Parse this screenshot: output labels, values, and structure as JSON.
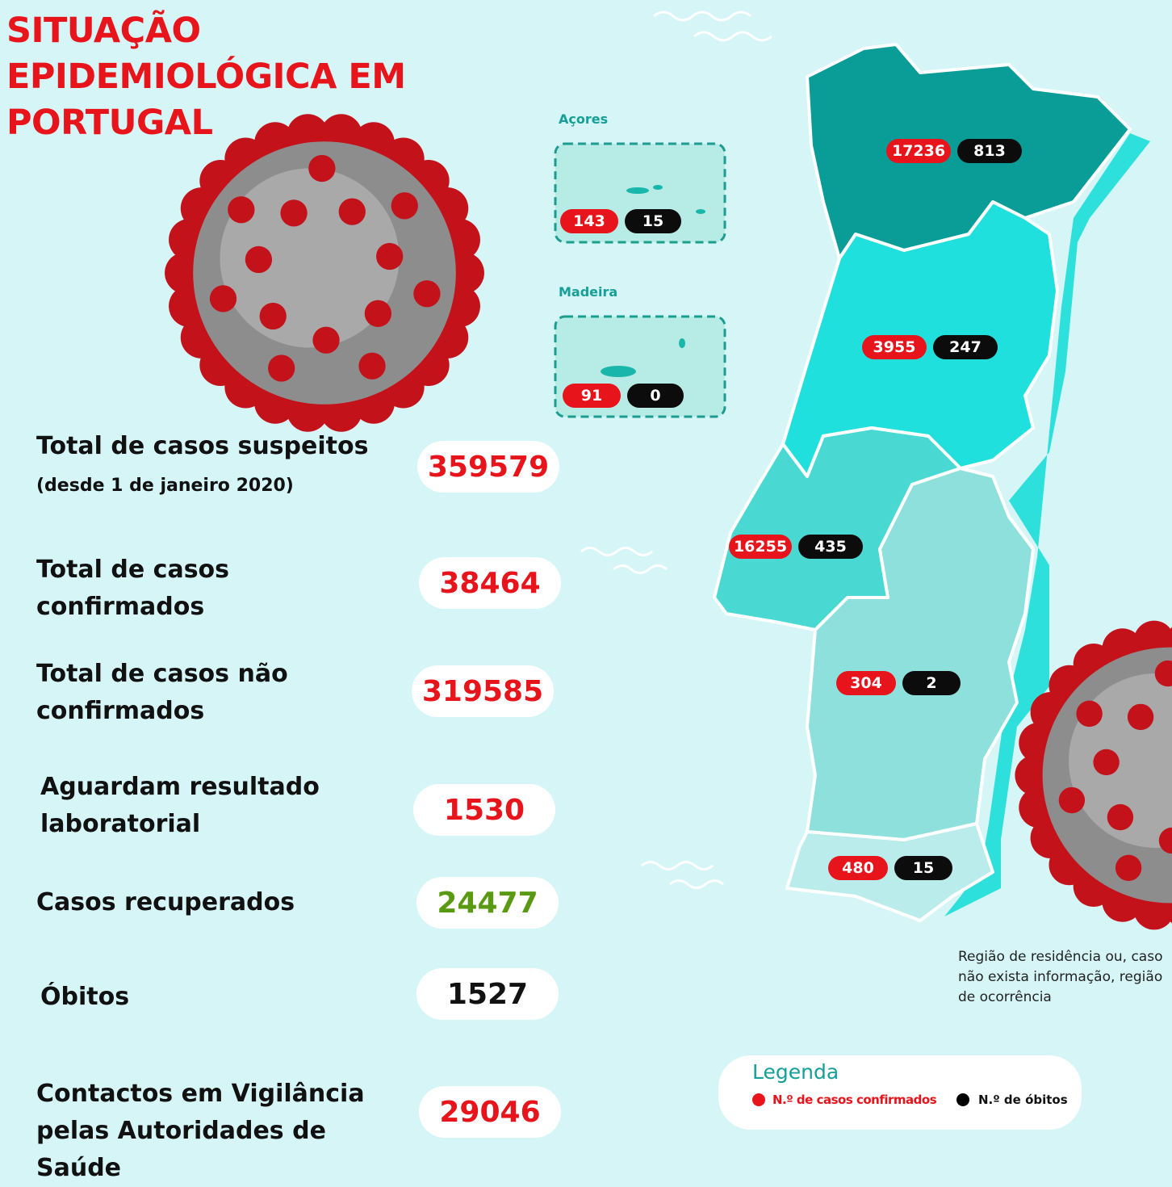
{
  "title_lines": [
    "SITUAÇÃO",
    "EPIDEMIOLÓGICA EM",
    "PORTUGAL"
  ],
  "stats": [
    {
      "label": "Total de casos suspeitos",
      "note": "(desde 1 de janeiro 2020)",
      "value": 359579,
      "color": "#e8141b"
    },
    {
      "label": "Total de casos confirmados",
      "value": 38464,
      "color": "#e8141b"
    },
    {
      "label": "Total de casos não confirmados",
      "value": 319585,
      "color": "#e8141b"
    },
    {
      "label": "Aguardam resultado laboratorial",
      "value": 1530,
      "color": "#e8141b"
    },
    {
      "label": "Casos recuperados",
      "value": 24477,
      "color": "#5a9a12"
    },
    {
      "label": "Óbitos",
      "value": 1527,
      "color": "#111111"
    },
    {
      "label": "Contactos em Vigilância pelas Autoridades de Saúde",
      "value": 29046,
      "color": "#e8141b"
    }
  ],
  "islands": [
    {
      "name": "Açores",
      "cases": 143,
      "deaths": 15
    },
    {
      "name": "Madeira",
      "cases": 91,
      "deaths": 0
    }
  ],
  "regions": [
    {
      "cases": 17236,
      "deaths": 813
    },
    {
      "cases": 3955,
      "deaths": 247
    },
    {
      "cases": 16255,
      "deaths": 435
    },
    {
      "cases": 304,
      "deaths": 2
    },
    {
      "cases": 480,
      "deaths": 15
    }
  ],
  "footnote": "Região de residência ou, caso não exista informação, região de ocorrência",
  "legend": {
    "title": "Legenda",
    "cases": "N.º de casos confirmados",
    "deaths": "N.º de óbitos"
  }
}
